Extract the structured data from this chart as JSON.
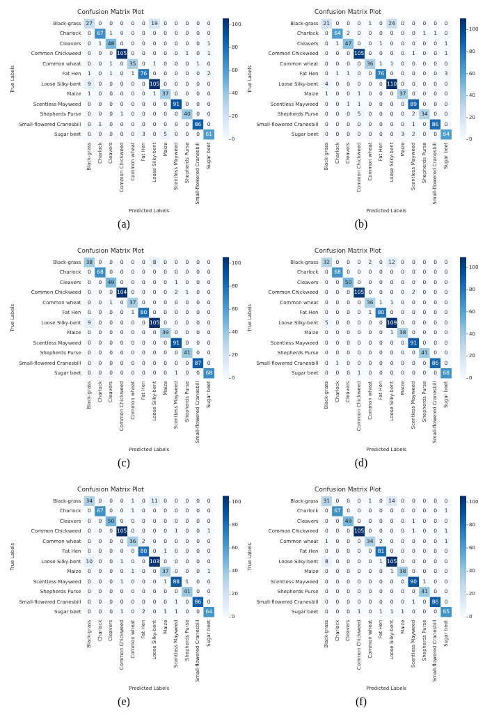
{
  "chart_data": [
    {
      "type": "heatmap",
      "title": "Confusion Matrix Plot",
      "xlabel": "Predicted Labels",
      "ylabel": "True Labels",
      "annotations": [
        "(a)"
      ],
      "data_labels": true,
      "clim": [
        0,
        105
      ],
      "cticks": [
        0,
        20,
        40,
        60,
        80,
        100
      ],
      "categories": [
        "Black-grass",
        "Charlock",
        "Cleavers",
        "Common Chickweed",
        "Common wheat",
        "Fat Hen",
        "Loose Silky-bent",
        "Maize",
        "Scentless Mayweed",
        "Shepherds Purse",
        "Small-flowered Cranesbill",
        "Sugar beet"
      ],
      "y_categories": [
        "Black-grass",
        "Charlock",
        "Cleavers",
        "Common Chickweed",
        "Common wheat",
        "Fat Hen",
        "Loose Silky-bent",
        "Maize",
        "Scentless Mayweed",
        "Shepherds Purse",
        "Small-flowered Cranesbill",
        "Sugar beet"
      ],
      "cells": [
        [
          27,
          0,
          0,
          0,
          0,
          0,
          19,
          0,
          0,
          0,
          0,
          0
        ],
        [
          0,
          67,
          1,
          0,
          0,
          0,
          0,
          0,
          0,
          0,
          0,
          0
        ],
        [
          0,
          1,
          48,
          0,
          0,
          0,
          0,
          0,
          0,
          0,
          0,
          1
        ],
        [
          0,
          0,
          0,
          105,
          0,
          0,
          0,
          0,
          0,
          1,
          0,
          1
        ],
        [
          0,
          0,
          1,
          0,
          35,
          0,
          1,
          0,
          0,
          0,
          1,
          0
        ],
        [
          1,
          0,
          1,
          0,
          1,
          76,
          0,
          0,
          0,
          0,
          0,
          2
        ],
        [
          9,
          0,
          0,
          0,
          0,
          0,
          105,
          0,
          0,
          0,
          0,
          0
        ],
        [
          1,
          0,
          0,
          0,
          0,
          0,
          1,
          37,
          0,
          0,
          0,
          0
        ],
        [
          0,
          0,
          0,
          0,
          0,
          0,
          0,
          0,
          91,
          0,
          0,
          0
        ],
        [
          0,
          0,
          0,
          1,
          0,
          0,
          0,
          0,
          0,
          40,
          0,
          0
        ],
        [
          0,
          1,
          0,
          0,
          0,
          0,
          0,
          0,
          0,
          0,
          86,
          0
        ],
        [
          0,
          0,
          0,
          0,
          0,
          3,
          0,
          5,
          0,
          0,
          0,
          61
        ]
      ]
    },
    {
      "type": "heatmap",
      "title": "Confusion Matrix Plot",
      "xlabel": "Predicted Labels",
      "ylabel": "True Labels",
      "annotations": [
        "(b)"
      ],
      "data_labels": true,
      "clim": [
        0,
        110
      ],
      "cticks": [
        0,
        20,
        40,
        60,
        80,
        100
      ],
      "categories": [
        "Black-grass",
        "Charlock",
        "Cleavers",
        "Common Chickweed",
        "Common wheat",
        "Fat Hen",
        "Loose Silky-bent",
        "Maize",
        "Scentless Mayweed",
        "Shepherds Purse",
        "Small-flowered Cranesbill",
        "Sugar beet"
      ],
      "y_categories": [
        "Black-grass",
        "Charlock",
        "Cleavers",
        "Common Chickweed",
        "Common wheat",
        "Fat Hen",
        "Loose Silky-bent",
        "Maize",
        "Scentless Mayweed",
        "Shepherds Purse",
        "Small-flowered Cranesbill",
        "Sugar beet"
      ],
      "cells": [
        [
          21,
          0,
          0,
          0,
          1,
          0,
          24,
          0,
          0,
          0,
          0,
          0
        ],
        [
          0,
          64,
          2,
          0,
          0,
          0,
          0,
          0,
          0,
          1,
          1,
          0
        ],
        [
          0,
          1,
          47,
          0,
          0,
          1,
          0,
          0,
          0,
          0,
          0,
          1
        ],
        [
          0,
          0,
          0,
          105,
          0,
          0,
          0,
          0,
          1,
          0,
          0,
          1
        ],
        [
          0,
          0,
          0,
          0,
          36,
          1,
          1,
          0,
          0,
          0,
          0,
          0
        ],
        [
          0,
          1,
          1,
          0,
          0,
          76,
          0,
          0,
          0,
          0,
          0,
          3
        ],
        [
          4,
          0,
          0,
          0,
          0,
          0,
          110,
          0,
          0,
          0,
          0,
          0
        ],
        [
          1,
          0,
          0,
          1,
          0,
          0,
          0,
          37,
          0,
          0,
          0,
          0
        ],
        [
          0,
          0,
          1,
          1,
          0,
          0,
          0,
          0,
          89,
          0,
          0,
          0
        ],
        [
          0,
          0,
          0,
          5,
          0,
          0,
          0,
          0,
          2,
          34,
          0,
          0
        ],
        [
          0,
          0,
          0,
          0,
          0,
          0,
          0,
          0,
          1,
          0,
          86,
          0
        ],
        [
          0,
          0,
          0,
          0,
          0,
          0,
          0,
          3,
          2,
          0,
          0,
          64
        ]
      ]
    },
    {
      "type": "heatmap",
      "title": "Confusion Matrix Plot",
      "xlabel": "Predicted Labels",
      "ylabel": "True Labels",
      "annotations": [
        "(c)"
      ],
      "data_labels": true,
      "clim": [
        0,
        105
      ],
      "cticks": [
        0,
        20,
        40,
        60,
        80,
        100
      ],
      "categories": [
        "Black-grass",
        "Charlock",
        "Cleavers",
        "Common Chickweed",
        "Common wheat",
        "Fat Hen",
        "Loose Silky-bent",
        "Maize",
        "Scentless Mayweed",
        "Shepherds Purse",
        "Small-flowered Cranesbill",
        "Sugar beet"
      ],
      "y_categories": [
        "Black-grass",
        "Charlock",
        "Cleavers",
        "Common Chickweed",
        "Common wheat",
        "Fat Hen",
        "Loose Silky-bent",
        "Maize",
        "Scentless Mayweed",
        "Shepherds Purse",
        "Small-flowered Cranesbill",
        "Sugar beet"
      ],
      "cells": [
        [
          38,
          0,
          0,
          0,
          0,
          0,
          8,
          0,
          0,
          0,
          0,
          0
        ],
        [
          0,
          68,
          0,
          0,
          0,
          0,
          0,
          0,
          0,
          0,
          0,
          0
        ],
        [
          0,
          0,
          49,
          0,
          0,
          0,
          0,
          0,
          1,
          0,
          0,
          0
        ],
        [
          0,
          0,
          0,
          104,
          0,
          0,
          0,
          0,
          2,
          1,
          0,
          0
        ],
        [
          0,
          0,
          1,
          0,
          37,
          0,
          0,
          0,
          0,
          0,
          0,
          0
        ],
        [
          0,
          0,
          0,
          0,
          1,
          80,
          0,
          0,
          0,
          0,
          0,
          0
        ],
        [
          9,
          0,
          0,
          0,
          0,
          0,
          105,
          0,
          0,
          0,
          0,
          0
        ],
        [
          0,
          0,
          0,
          0,
          0,
          0,
          0,
          39,
          0,
          0,
          0,
          0
        ],
        [
          0,
          0,
          0,
          0,
          0,
          0,
          0,
          0,
          91,
          0,
          0,
          0
        ],
        [
          0,
          0,
          0,
          0,
          0,
          0,
          0,
          0,
          0,
          41,
          0,
          0
        ],
        [
          0,
          0,
          0,
          0,
          0,
          0,
          0,
          0,
          0,
          0,
          87,
          0
        ],
        [
          0,
          0,
          0,
          0,
          0,
          0,
          0,
          0,
          1,
          0,
          0,
          68
        ]
      ]
    },
    {
      "type": "heatmap",
      "title": "Confusion Matrix Plot",
      "xlabel": "Predicted Labels",
      "ylabel": "True Labels",
      "annotations": [
        "(d)"
      ],
      "data_labels": true,
      "clim": [
        0,
        109
      ],
      "cticks": [
        0,
        20,
        40,
        60,
        80,
        100
      ],
      "categories": [
        "Black-grass",
        "Charlock",
        "Cleavers",
        "Common Chickweed",
        "Common wheat",
        "Fat Hen",
        "Loose Silky-bent",
        "Maize",
        "Scentless Mayweed",
        "Shepherds Purse",
        "Small-flowered Cranesbill",
        "Sugar beet"
      ],
      "y_categories": [
        "Black-grass",
        "Charlock",
        "Cleavers",
        "Common Chickweed",
        "Common wheat",
        "Fat Hen",
        "Loose Silky-bent",
        "Maize",
        "Scentless Mayweed",
        "Shepherds Purse",
        "Small-flowered Cranesbill",
        "Sugar beet"
      ],
      "cells": [
        [
          32,
          0,
          0,
          0,
          2,
          0,
          12,
          0,
          0,
          0,
          0,
          0
        ],
        [
          0,
          68,
          0,
          0,
          0,
          0,
          0,
          0,
          0,
          0,
          0,
          0
        ],
        [
          0,
          0,
          50,
          0,
          0,
          0,
          0,
          0,
          0,
          0,
          0,
          0
        ],
        [
          0,
          0,
          0,
          105,
          0,
          0,
          0,
          0,
          2,
          0,
          0,
          0
        ],
        [
          0,
          0,
          0,
          0,
          36,
          1,
          1,
          0,
          0,
          0,
          0,
          0
        ],
        [
          0,
          0,
          0,
          0,
          1,
          80,
          0,
          0,
          0,
          0,
          0,
          0
        ],
        [
          5,
          0,
          0,
          0,
          0,
          0,
          109,
          0,
          0,
          0,
          0,
          0
        ],
        [
          0,
          0,
          0,
          0,
          0,
          0,
          1,
          38,
          0,
          0,
          0,
          0
        ],
        [
          0,
          0,
          0,
          0,
          0,
          0,
          0,
          0,
          91,
          0,
          0,
          0
        ],
        [
          0,
          0,
          0,
          0,
          0,
          0,
          0,
          0,
          0,
          41,
          0,
          0
        ],
        [
          0,
          1,
          0,
          0,
          0,
          0,
          0,
          0,
          0,
          0,
          86,
          0
        ],
        [
          0,
          0,
          0,
          1,
          0,
          0,
          0,
          0,
          0,
          0,
          0,
          68
        ]
      ]
    },
    {
      "type": "heatmap",
      "title": "Confusion Matrix Plot",
      "xlabel": "Predicted Labels",
      "ylabel": "True Labels",
      "annotations": [
        "(e)"
      ],
      "data_labels": true,
      "clim": [
        0,
        105
      ],
      "cticks": [
        0,
        20,
        40,
        60,
        80,
        100
      ],
      "categories": [
        "Black-grass",
        "Charlock",
        "Cleavers",
        "Common Chickweed",
        "Common wheat",
        "Fat Hen",
        "Loose Silky-bent",
        "Maize",
        "Scentless Mayweed",
        "Shepherds Purse",
        "Small-flowered Cranesbill",
        "Sugar beet"
      ],
      "y_categories": [
        "Black-grass",
        "Charlock",
        "Cleavers",
        "Common Chickweed",
        "Common wheat",
        "Fat Hen",
        "Loose Silky-bent",
        "Maize",
        "Scentless Mayweed",
        "Shepherds Purse",
        "Small-flowered Cranesbill",
        "Sugar beet"
      ],
      "cells": [
        [
          34,
          0,
          0,
          0,
          1,
          0,
          11,
          0,
          0,
          0,
          0,
          0
        ],
        [
          0,
          67,
          0,
          0,
          1,
          0,
          0,
          0,
          0,
          0,
          0,
          0
        ],
        [
          0,
          0,
          50,
          0,
          0,
          0,
          0,
          0,
          0,
          0,
          0,
          0
        ],
        [
          0,
          0,
          0,
          105,
          0,
          0,
          0,
          0,
          1,
          0,
          0,
          1
        ],
        [
          0,
          0,
          0,
          0,
          36,
          2,
          0,
          0,
          0,
          0,
          0,
          0
        ],
        [
          0,
          0,
          0,
          0,
          0,
          80,
          0,
          1,
          0,
          0,
          0,
          0
        ],
        [
          10,
          0,
          0,
          1,
          0,
          0,
          103,
          0,
          0,
          0,
          0,
          0
        ],
        [
          0,
          0,
          0,
          0,
          1,
          0,
          0,
          37,
          0,
          0,
          0,
          1
        ],
        [
          0,
          0,
          0,
          1,
          0,
          0,
          0,
          1,
          88,
          1,
          0,
          0
        ],
        [
          0,
          0,
          0,
          0,
          0,
          0,
          0,
          0,
          0,
          41,
          0,
          0
        ],
        [
          0,
          0,
          0,
          0,
          0,
          0,
          0,
          0,
          1,
          0,
          86,
          0
        ],
        [
          0,
          0,
          0,
          1,
          0,
          2,
          0,
          1,
          1,
          0,
          0,
          64
        ]
      ]
    },
    {
      "type": "heatmap",
      "title": "Confusion Matrix Plot",
      "xlabel": "Predicted Labels",
      "ylabel": "True Labels",
      "annotations": [
        "(f)"
      ],
      "data_labels": true,
      "clim": [
        0,
        105
      ],
      "cticks": [
        0,
        20,
        40,
        60,
        80,
        100
      ],
      "categories": [
        "Black-grass",
        "Charlock",
        "Cleavers",
        "Common Chickweed",
        "Common wheat",
        "Fat Hen",
        "Loose Silky-bent",
        "Maize",
        "Scentless Mayweed",
        "Shepherds Purse",
        "Small-flowered Cranesbill",
        "Sugar beet"
      ],
      "y_categories": [
        "Black-grass",
        "Charlock",
        "Cleavers",
        "Common Chickweed",
        "Common wheat",
        "Fat Hen",
        "Loose Silky-bent",
        "Maize",
        "Scentless Mayweed",
        "Shepherds Purse",
        "Small-flowered Cranesbill",
        "Sugar beet"
      ],
      "cells": [
        [
          31,
          0,
          0,
          0,
          1,
          0,
          14,
          0,
          0,
          0,
          0,
          0
        ],
        [
          0,
          67,
          0,
          0,
          0,
          0,
          0,
          0,
          0,
          0,
          0,
          1
        ],
        [
          0,
          0,
          49,
          0,
          0,
          0,
          0,
          0,
          1,
          0,
          0,
          0
        ],
        [
          0,
          0,
          0,
          105,
          0,
          0,
          0,
          0,
          1,
          0,
          0,
          1
        ],
        [
          1,
          0,
          0,
          0,
          34,
          2,
          0,
          0,
          0,
          0,
          0,
          1
        ],
        [
          0,
          0,
          0,
          0,
          0,
          81,
          0,
          0,
          0,
          0,
          0,
          0
        ],
        [
          8,
          0,
          0,
          0,
          0,
          1,
          105,
          0,
          0,
          0,
          0,
          0
        ],
        [
          0,
          0,
          0,
          0,
          0,
          0,
          1,
          38,
          0,
          0,
          0,
          0
        ],
        [
          0,
          0,
          0,
          0,
          0,
          0,
          0,
          0,
          90,
          1,
          0,
          0
        ],
        [
          0,
          0,
          0,
          0,
          0,
          0,
          0,
          0,
          0,
          41,
          0,
          0
        ],
        [
          0,
          0,
          0,
          0,
          0,
          0,
          0,
          0,
          1,
          0,
          86,
          0
        ],
        [
          0,
          0,
          0,
          1,
          0,
          1,
          1,
          1,
          0,
          0,
          0,
          65
        ]
      ]
    }
  ]
}
